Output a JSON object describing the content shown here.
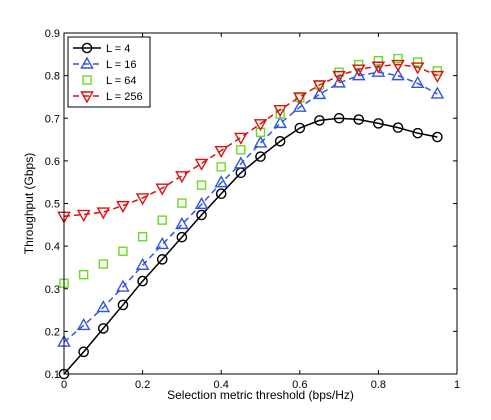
{
  "chart_data": {
    "type": "line",
    "xlabel": "Selection metric threshold (bps/Hz)",
    "ylabel": "Throughput (Gbps)",
    "xlim": [
      0,
      1
    ],
    "ylim": [
      0.1,
      0.9
    ],
    "xticks": [
      0,
      0.2,
      0.4,
      0.6,
      0.8,
      1
    ],
    "yticks": [
      0.1,
      0.2,
      0.3,
      0.4,
      0.5,
      0.6,
      0.7,
      0.8,
      0.9
    ],
    "xtick_labels": [
      "0",
      "0.2",
      "0.4",
      "0.6",
      "0.8",
      "1"
    ],
    "ytick_labels": [
      "0.1",
      "0.2",
      "0.3",
      "0.4",
      "0.5",
      "0.6",
      "0.7",
      "0.8",
      "0.9"
    ],
    "grid": false,
    "legend_position": "top-left",
    "x": [
      0,
      0.05,
      0.1,
      0.15,
      0.2,
      0.25,
      0.3,
      0.35,
      0.4,
      0.45,
      0.5,
      0.55,
      0.6,
      0.65,
      0.7,
      0.75,
      0.8,
      0.85,
      0.9,
      0.95
    ],
    "series": [
      {
        "name": "L = 4",
        "color": "#000000",
        "marker": "circle",
        "line_style": "solid",
        "values": [
          0.1,
          0.152,
          0.207,
          0.262,
          0.318,
          0.369,
          0.421,
          0.473,
          0.523,
          0.572,
          0.61,
          0.646,
          0.677,
          0.695,
          0.7,
          0.697,
          0.688,
          0.678,
          0.665,
          0.656
        ]
      },
      {
        "name": "L = 16",
        "color": "#3355dd",
        "marker": "triangle-up",
        "line_style": "dashed",
        "values": [
          0.175,
          0.214,
          0.256,
          0.304,
          0.355,
          0.404,
          0.451,
          0.498,
          0.549,
          0.593,
          0.642,
          0.688,
          0.726,
          0.756,
          0.783,
          0.8,
          0.808,
          0.8,
          0.782,
          0.757
        ]
      },
      {
        "name": "L = 64",
        "color": "#66dd22",
        "marker": "square",
        "line_style": "none",
        "values": [
          0.313,
          0.333,
          0.358,
          0.388,
          0.422,
          0.461,
          0.501,
          0.543,
          0.586,
          0.626,
          0.667,
          0.71,
          0.748,
          0.778,
          0.808,
          0.826,
          0.835,
          0.84,
          0.832,
          0.811
        ]
      },
      {
        "name": "L = 256",
        "color": "#dd1111",
        "marker": "triangle-down",
        "line_style": "dashed",
        "values": [
          0.47,
          0.474,
          0.48,
          0.495,
          0.513,
          0.536,
          0.565,
          0.594,
          0.624,
          0.655,
          0.687,
          0.72,
          0.75,
          0.778,
          0.8,
          0.815,
          0.822,
          0.826,
          0.82,
          0.8
        ]
      }
    ]
  }
}
